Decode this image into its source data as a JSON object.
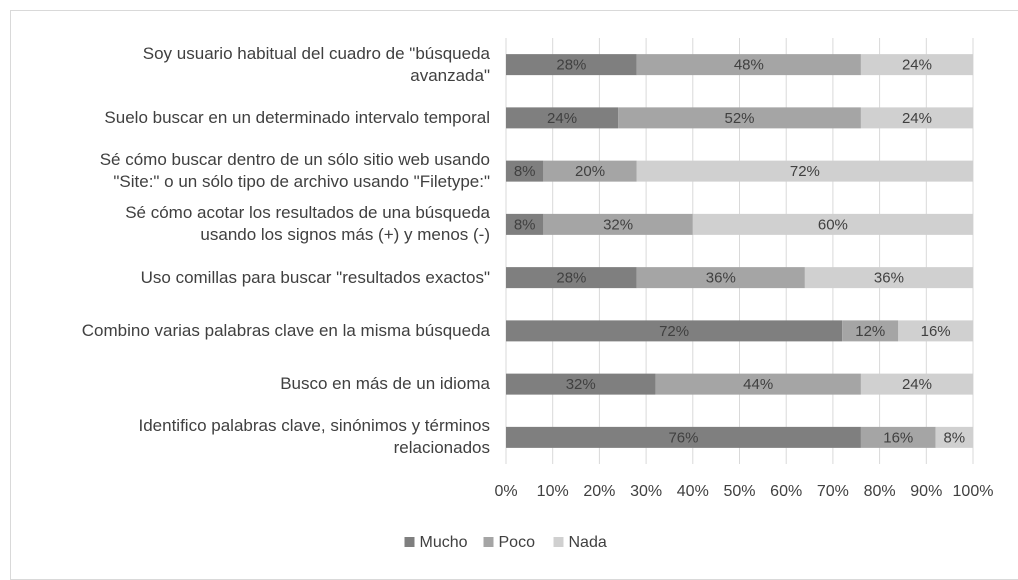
{
  "chart_data": {
    "type": "stacked-barh",
    "categories": [
      "Soy usuario habitual del cuadro de \"búsqueda\navanzada\"",
      "Suelo buscar en un determinado intervalo temporal",
      "Sé cómo buscar dentro de un sólo sitio web usando\n\"Site:\" o un sólo tipo de archivo usando \"Filetype:\"",
      "Sé cómo acotar los resultados de una búsqueda\nusando los signos más (+) y menos (-)",
      "Uso comillas para buscar \"resultados exactos\"",
      "Combino varias palabras clave en la misma búsqueda",
      "Busco en más de un idioma",
      "Identifico palabras clave, sinónimos y términos\nrelacionados"
    ],
    "series": [
      {
        "name": "Mucho",
        "color": "#7f7f7f",
        "values": [
          28,
          24,
          8,
          8,
          28,
          72,
          32,
          76
        ],
        "value_labels": [
          "28%",
          "24%",
          "8%",
          "8%",
          "28%",
          "72%",
          "32%",
          "76%"
        ]
      },
      {
        "name": "Poco",
        "color": "#a5a5a5",
        "values": [
          48,
          52,
          20,
          32,
          36,
          12,
          44,
          16
        ],
        "value_labels": [
          "48%",
          "52%",
          "20%",
          "32%",
          "36%",
          "12%",
          "44%",
          "16%"
        ]
      },
      {
        "name": "Nada",
        "color": "#d0d0d0",
        "values": [
          24,
          24,
          72,
          60,
          36,
          16,
          24,
          8
        ],
        "value_labels": [
          "24%",
          "24%",
          "72%",
          "60%",
          "36%",
          "16%",
          "24%",
          "8%"
        ]
      }
    ],
    "xlim": [
      0,
      100
    ],
    "xticks": [
      {
        "value": 0,
        "label": "0%"
      },
      {
        "value": 10,
        "label": "10%"
      },
      {
        "value": 20,
        "label": "20%"
      },
      {
        "value": 30,
        "label": "30%"
      },
      {
        "value": 40,
        "label": "40%"
      },
      {
        "value": 50,
        "label": "50%"
      },
      {
        "value": 60,
        "label": "60%"
      },
      {
        "value": 70,
        "label": "70%"
      },
      {
        "value": 80,
        "label": "80%"
      },
      {
        "value": 90,
        "label": "90%"
      },
      {
        "value": 100,
        "label": "100%"
      }
    ],
    "grid": true,
    "legend": "bottom"
  }
}
